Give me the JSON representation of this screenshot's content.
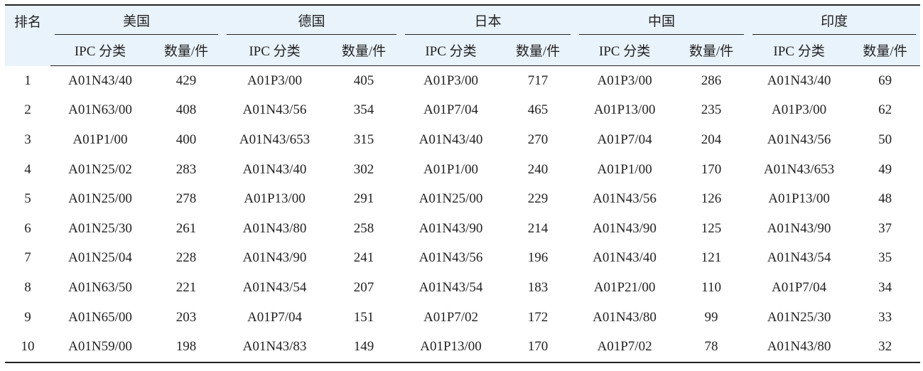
{
  "table": {
    "rank_header": "排名",
    "groups": [
      "美国",
      "德国",
      "日本",
      "中国",
      "印度"
    ],
    "sub_headers": [
      "IPC 分类",
      "数量/件"
    ],
    "rows": [
      {
        "rank": "1",
        "cells": [
          [
            "A01N43/40",
            "429"
          ],
          [
            "A01P3/00",
            "405"
          ],
          [
            "A01P3/00",
            "717"
          ],
          [
            "A01P3/00",
            "286"
          ],
          [
            "A01N43/40",
            "69"
          ]
        ]
      },
      {
        "rank": "2",
        "cells": [
          [
            "A01N63/00",
            "408"
          ],
          [
            "A01N43/56",
            "354"
          ],
          [
            "A01P7/04",
            "465"
          ],
          [
            "A01P13/00",
            "235"
          ],
          [
            "A01P3/00",
            "62"
          ]
        ]
      },
      {
        "rank": "3",
        "cells": [
          [
            "A01P1/00",
            "400"
          ],
          [
            "A01N43/653",
            "315"
          ],
          [
            "A01N43/40",
            "270"
          ],
          [
            "A01P7/04",
            "204"
          ],
          [
            "A01N43/56",
            "50"
          ]
        ]
      },
      {
        "rank": "4",
        "cells": [
          [
            "A01N25/02",
            "283"
          ],
          [
            "A01N43/40",
            "302"
          ],
          [
            "A01P1/00",
            "240"
          ],
          [
            "A01P1/00",
            "170"
          ],
          [
            "A01N43/653",
            "49"
          ]
        ]
      },
      {
        "rank": "5",
        "cells": [
          [
            "A01N25/00",
            "278"
          ],
          [
            "A01P13/00",
            "291"
          ],
          [
            "A01N25/00",
            "229"
          ],
          [
            "A01N43/56",
            "126"
          ],
          [
            "A01P13/00",
            "48"
          ]
        ]
      },
      {
        "rank": "6",
        "cells": [
          [
            "A01N25/30",
            "261"
          ],
          [
            "A01N43/80",
            "258"
          ],
          [
            "A01N43/90",
            "214"
          ],
          [
            "A01N43/90",
            "125"
          ],
          [
            "A01N43/90",
            "37"
          ]
        ]
      },
      {
        "rank": "7",
        "cells": [
          [
            "A01N25/04",
            "228"
          ],
          [
            "A01N43/90",
            "241"
          ],
          [
            "A01N43/56",
            "196"
          ],
          [
            "A01N43/40",
            "121"
          ],
          [
            "A01N43/54",
            "35"
          ]
        ]
      },
      {
        "rank": "8",
        "cells": [
          [
            "A01N63/50",
            "221"
          ],
          [
            "A01N43/54",
            "207"
          ],
          [
            "A01N43/54",
            "183"
          ],
          [
            "A01P21/00",
            "110"
          ],
          [
            "A01P7/04",
            "34"
          ]
        ]
      },
      {
        "rank": "9",
        "cells": [
          [
            "A01N65/00",
            "203"
          ],
          [
            "A01P7/04",
            "151"
          ],
          [
            "A01P7/02",
            "172"
          ],
          [
            "A01N43/80",
            "99"
          ],
          [
            "A01N25/30",
            "33"
          ]
        ]
      },
      {
        "rank": "10",
        "cells": [
          [
            "A01N59/00",
            "198"
          ],
          [
            "A01N43/83",
            "149"
          ],
          [
            "A01P13/00",
            "170"
          ],
          [
            "A01P7/02",
            "78"
          ],
          [
            "A01N43/80",
            "32"
          ]
        ]
      }
    ]
  }
}
